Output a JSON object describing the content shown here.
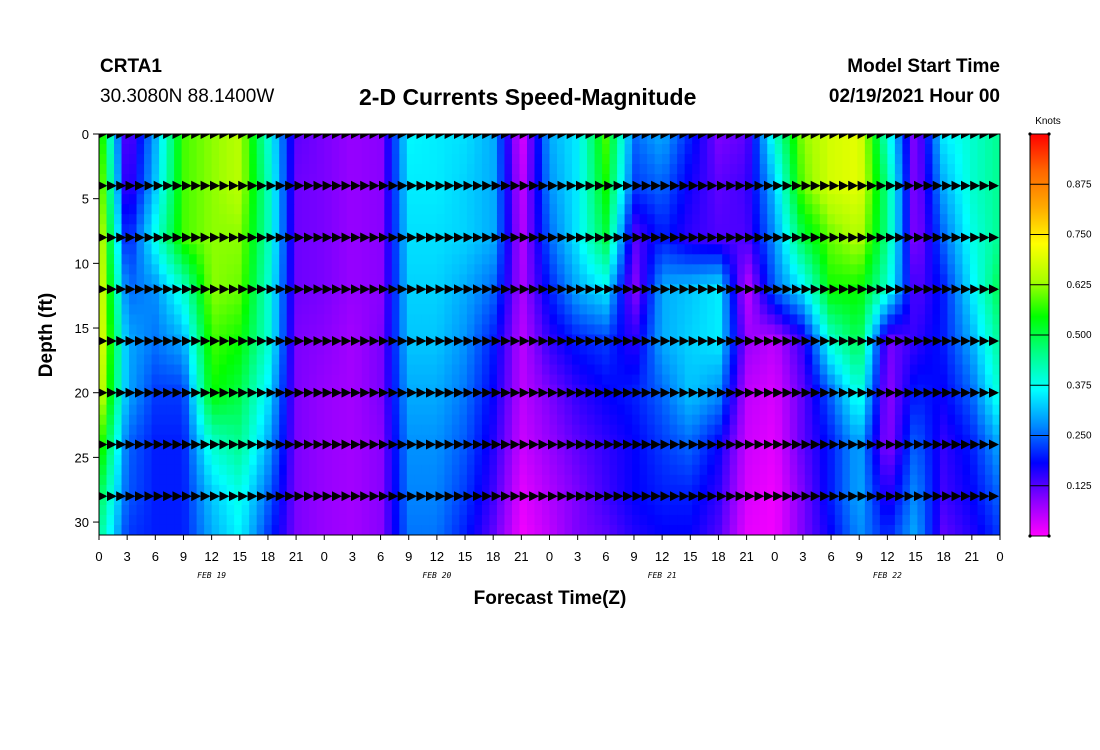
{
  "header": {
    "station": "CRTA1",
    "coords": "30.3080N 88.1400W",
    "title": "2-D Currents Speed-Magnitude",
    "model_start_label": "Model Start Time",
    "model_start_value": "02/19/2021 Hour 00"
  },
  "chart_data": {
    "type": "heatmap",
    "xlabel": "Forecast Time(Z)",
    "ylabel": "Depth (ft)",
    "x_tick_labels": [
      "0",
      "3",
      "6",
      "9",
      "12",
      "15",
      "18",
      "21",
      "0",
      "3",
      "6",
      "9",
      "12",
      "15",
      "18",
      "21",
      "0",
      "3",
      "6",
      "9",
      "12",
      "15",
      "18",
      "21",
      "0",
      "3",
      "6",
      "9",
      "12",
      "15",
      "18",
      "21",
      "0"
    ],
    "x_range_hours": [
      0,
      96
    ],
    "day_labels": [
      {
        "text": "FEB 19",
        "hour": 12
      },
      {
        "text": "FEB 20",
        "hour": 36
      },
      {
        "text": "FEB 21",
        "hour": 60
      },
      {
        "text": "FEB 22",
        "hour": 84
      }
    ],
    "y_ticks": [
      0,
      5,
      10,
      15,
      20,
      25,
      30
    ],
    "y_range": [
      0,
      31
    ],
    "y_inverted": true,
    "colorbar": {
      "unit": "Knots",
      "range": [
        0,
        1.0
      ],
      "tick_values": [
        0.125,
        0.25,
        0.375,
        0.5,
        0.625,
        0.75,
        0.875
      ],
      "tick_labels": [
        "0.125",
        "0.250",
        "0.375",
        "0.500",
        "0.625",
        "0.750",
        "0.875"
      ],
      "colors": [
        "#ff00ff",
        "#8800ff",
        "#0000ff",
        "#0088ff",
        "#00ffff",
        "#00ff88",
        "#00ff00",
        "#aaff00",
        "#ffff00",
        "#ffaa00",
        "#ff6600",
        "#ff0000"
      ]
    },
    "speed_field": {
      "hours": [
        0,
        3,
        6,
        9,
        12,
        15,
        18,
        21,
        24,
        27,
        30,
        33,
        36,
        39,
        42,
        45,
        48,
        51,
        54,
        57,
        60,
        63,
        66,
        69,
        72,
        75,
        78,
        81,
        84,
        87,
        90,
        93,
        96
      ],
      "depths": [
        0,
        4,
        8,
        12,
        16,
        20,
        24,
        28,
        31
      ],
      "values_knots": [
        [
          0.62,
          0.1,
          0.3,
          0.58,
          0.62,
          0.65,
          0.4,
          0.12,
          0.1,
          0.08,
          0.09,
          0.36,
          0.35,
          0.34,
          0.3,
          0.02,
          0.3,
          0.35,
          0.58,
          0.25,
          0.3,
          0.2,
          0.1,
          0.12,
          0.4,
          0.62,
          0.68,
          0.7,
          0.4,
          0.08,
          0.35,
          0.4,
          0.45
        ],
        [
          0.66,
          0.12,
          0.32,
          0.58,
          0.62,
          0.65,
          0.42,
          0.11,
          0.1,
          0.08,
          0.09,
          0.35,
          0.35,
          0.33,
          0.3,
          0.04,
          0.28,
          0.35,
          0.55,
          0.22,
          0.25,
          0.17,
          0.12,
          0.14,
          0.32,
          0.6,
          0.68,
          0.7,
          0.45,
          0.08,
          0.3,
          0.4,
          0.45
        ],
        [
          0.7,
          0.18,
          0.38,
          0.58,
          0.62,
          0.62,
          0.42,
          0.11,
          0.1,
          0.08,
          0.09,
          0.34,
          0.34,
          0.33,
          0.3,
          0.05,
          0.25,
          0.35,
          0.5,
          0.12,
          0.2,
          0.15,
          0.13,
          0.13,
          0.28,
          0.5,
          0.6,
          0.65,
          0.45,
          0.08,
          0.25,
          0.38,
          0.45
        ],
        [
          0.72,
          0.25,
          0.28,
          0.4,
          0.62,
          0.6,
          0.4,
          0.11,
          0.1,
          0.08,
          0.09,
          0.33,
          0.33,
          0.3,
          0.25,
          0.06,
          0.2,
          0.3,
          0.35,
          0.08,
          0.3,
          0.32,
          0.35,
          0.04,
          0.25,
          0.35,
          0.55,
          0.55,
          0.4,
          0.12,
          0.2,
          0.35,
          0.5
        ],
        [
          0.73,
          0.3,
          0.26,
          0.3,
          0.58,
          0.55,
          0.4,
          0.1,
          0.09,
          0.07,
          0.1,
          0.32,
          0.32,
          0.28,
          0.2,
          0.05,
          0.15,
          0.2,
          0.22,
          0.15,
          0.3,
          0.33,
          0.35,
          0.08,
          0.05,
          0.15,
          0.4,
          0.5,
          0.1,
          0.15,
          0.2,
          0.3,
          0.45
        ],
        [
          0.7,
          0.3,
          0.22,
          0.22,
          0.55,
          0.5,
          0.35,
          0.1,
          0.08,
          0.07,
          0.1,
          0.3,
          0.3,
          0.26,
          0.18,
          0.05,
          0.1,
          0.15,
          0.18,
          0.2,
          0.25,
          0.32,
          0.28,
          0.05,
          0.03,
          0.12,
          0.25,
          0.4,
          0.08,
          0.2,
          0.18,
          0.25,
          0.4
        ],
        [
          0.6,
          0.25,
          0.2,
          0.2,
          0.4,
          0.45,
          0.3,
          0.1,
          0.08,
          0.07,
          0.09,
          0.28,
          0.28,
          0.24,
          0.16,
          0.04,
          0.08,
          0.12,
          0.15,
          0.18,
          0.22,
          0.25,
          0.18,
          0.04,
          0.02,
          0.12,
          0.2,
          0.3,
          0.08,
          0.25,
          0.15,
          0.2,
          0.3
        ],
        [
          0.5,
          0.24,
          0.2,
          0.2,
          0.32,
          0.38,
          0.25,
          0.1,
          0.08,
          0.07,
          0.09,
          0.27,
          0.27,
          0.22,
          0.14,
          0.02,
          0.06,
          0.1,
          0.14,
          0.18,
          0.2,
          0.2,
          0.15,
          0.03,
          0.01,
          0.1,
          0.2,
          0.3,
          0.15,
          0.28,
          0.14,
          0.18,
          0.25
        ],
        [
          0.45,
          0.22,
          0.2,
          0.2,
          0.3,
          0.36,
          0.22,
          0.1,
          0.08,
          0.07,
          0.09,
          0.26,
          0.26,
          0.2,
          0.12,
          0.01,
          0.05,
          0.1,
          0.12,
          0.16,
          0.18,
          0.18,
          0.13,
          0.02,
          0.01,
          0.1,
          0.18,
          0.28,
          0.2,
          0.3,
          0.12,
          0.16,
          0.22
        ]
      ]
    },
    "vectors": {
      "rows_depths": [
        0,
        4,
        8,
        12,
        16,
        20,
        24,
        28
      ],
      "note": "direction of current vectors per hour bin: E = eastward arrow",
      "arrow_runs": [
        {
          "depth": 4,
          "from_hour": 0,
          "to_hour": 2,
          "dir": "E"
        },
        {
          "depth": 8,
          "from_hour": 0,
          "to_hour": 2,
          "dir": "E"
        },
        {
          "depth": 12,
          "from_hour": 0,
          "to_hour": 1,
          "dir": "E"
        },
        {
          "depth": 16,
          "from_hour": 0,
          "to_hour": 1,
          "dir": "E"
        },
        {
          "depth": 20,
          "from_hour": 0,
          "to_hour": 1,
          "dir": "E"
        },
        {
          "depth": 24,
          "from_hour": 0,
          "to_hour": 1,
          "dir": "E"
        },
        {
          "depth": 28,
          "from_hour": 0,
          "to_hour": 1,
          "dir": "E"
        }
      ]
    }
  }
}
